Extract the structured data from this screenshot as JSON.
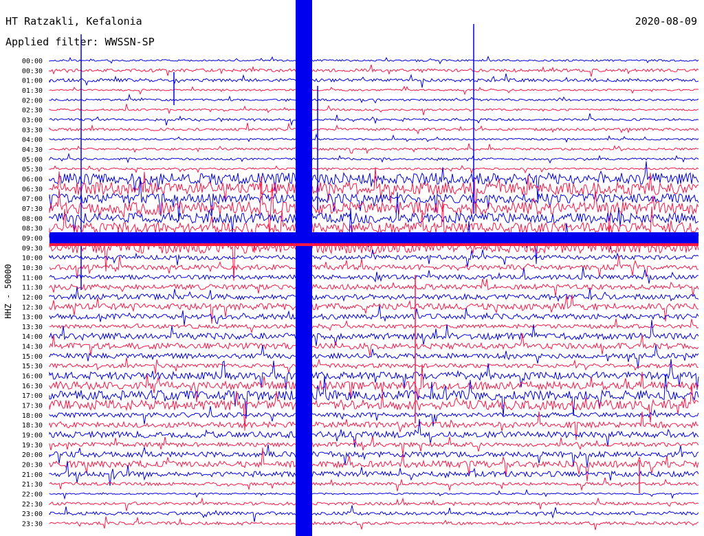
{
  "header": {
    "station": "HT Ratzakli, Kefalonia",
    "date": "2020-08-09",
    "filter": "Applied filter: WWSSN-SP"
  },
  "chart_data": {
    "type": "line",
    "title": "HT Ratzakli, Kefalonia",
    "date": "2020-08-09",
    "ylabel": "HHZ - 50000",
    "row_labels": [
      "00:00",
      "00:30",
      "01:00",
      "01:30",
      "02:00",
      "02:30",
      "03:00",
      "03:30",
      "04:00",
      "04:30",
      "05:00",
      "05:30",
      "06:00",
      "06:30",
      "07:00",
      "07:30",
      "08:00",
      "08:30",
      "09:00",
      "09:30",
      "10:00",
      "10:30",
      "11:00",
      "11:30",
      "12:00",
      "12:30",
      "13:00",
      "13:30",
      "14:00",
      "14:30",
      "15:00",
      "15:30",
      "16:00",
      "16:30",
      "17:00",
      "17:30",
      "18:00",
      "18:30",
      "19:00",
      "19:30",
      "20:00",
      "20:30",
      "21:00",
      "21:30",
      "22:00",
      "22:30",
      "23:00",
      "23:30"
    ],
    "series_colors": [
      "#0000ee",
      "#ff1744"
    ],
    "grid": false
  }
}
